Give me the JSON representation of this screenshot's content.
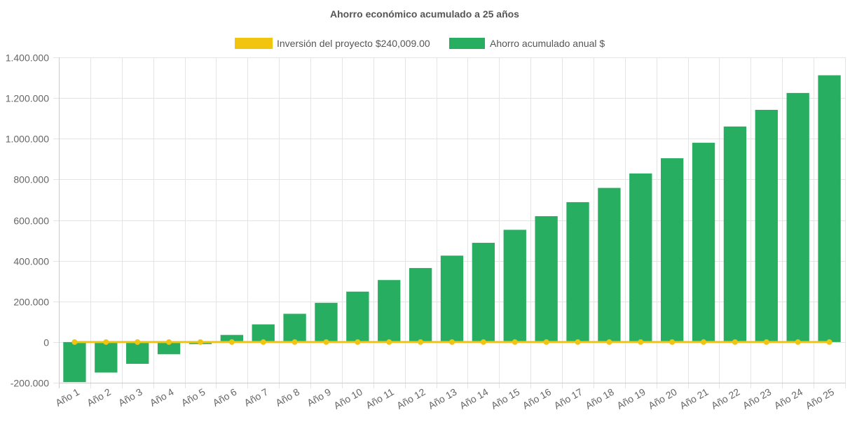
{
  "chart_data": {
    "type": "bar",
    "title": "Ahorro económico acumulado a 25 años",
    "categories": [
      "Año 1",
      "Año 2",
      "Año 3",
      "Año 4",
      "Año 5",
      "Año 6",
      "Año 7",
      "Año 8",
      "Año 9",
      "Año 10",
      "Año 11",
      "Año 12",
      "Año 13",
      "Año 14",
      "Año 15",
      "Año 16",
      "Año 17",
      "Año 18",
      "Año 19",
      "Año 20",
      "Año 21",
      "Año 22",
      "Año 23",
      "Año 24",
      "Año 25"
    ],
    "series": [
      {
        "name": "Inversión del proyecto $240,009.00",
        "chart_type": "line",
        "color": "#f1c40f",
        "values": [
          0,
          0,
          0,
          0,
          0,
          0,
          0,
          0,
          0,
          0,
          0,
          0,
          0,
          0,
          0,
          0,
          0,
          0,
          0,
          0,
          0,
          0,
          0,
          0,
          0
        ]
      },
      {
        "name": "Ahorro acumulado anual $",
        "chart_type": "bar",
        "color": "#27ae60",
        "values": [
          -197000,
          -150000,
          -107000,
          -60000,
          -10000,
          35000,
          87000,
          139000,
          193000,
          248000,
          305000,
          364000,
          425000,
          488000,
          552000,
          619000,
          688000,
          758000,
          829000,
          904000,
          980000,
          1060000,
          1142000,
          1225000,
          1312000
        ]
      }
    ],
    "y_ticks": [
      "1.400.000",
      "1.200.000",
      "1.000.000",
      "800.000",
      "600.000",
      "400.000",
      "200.000",
      "0",
      "-200.000"
    ],
    "ylim": [
      -200000,
      1400000
    ],
    "grid": true,
    "legend_position": "top",
    "xlabel": "",
    "ylabel": ""
  }
}
